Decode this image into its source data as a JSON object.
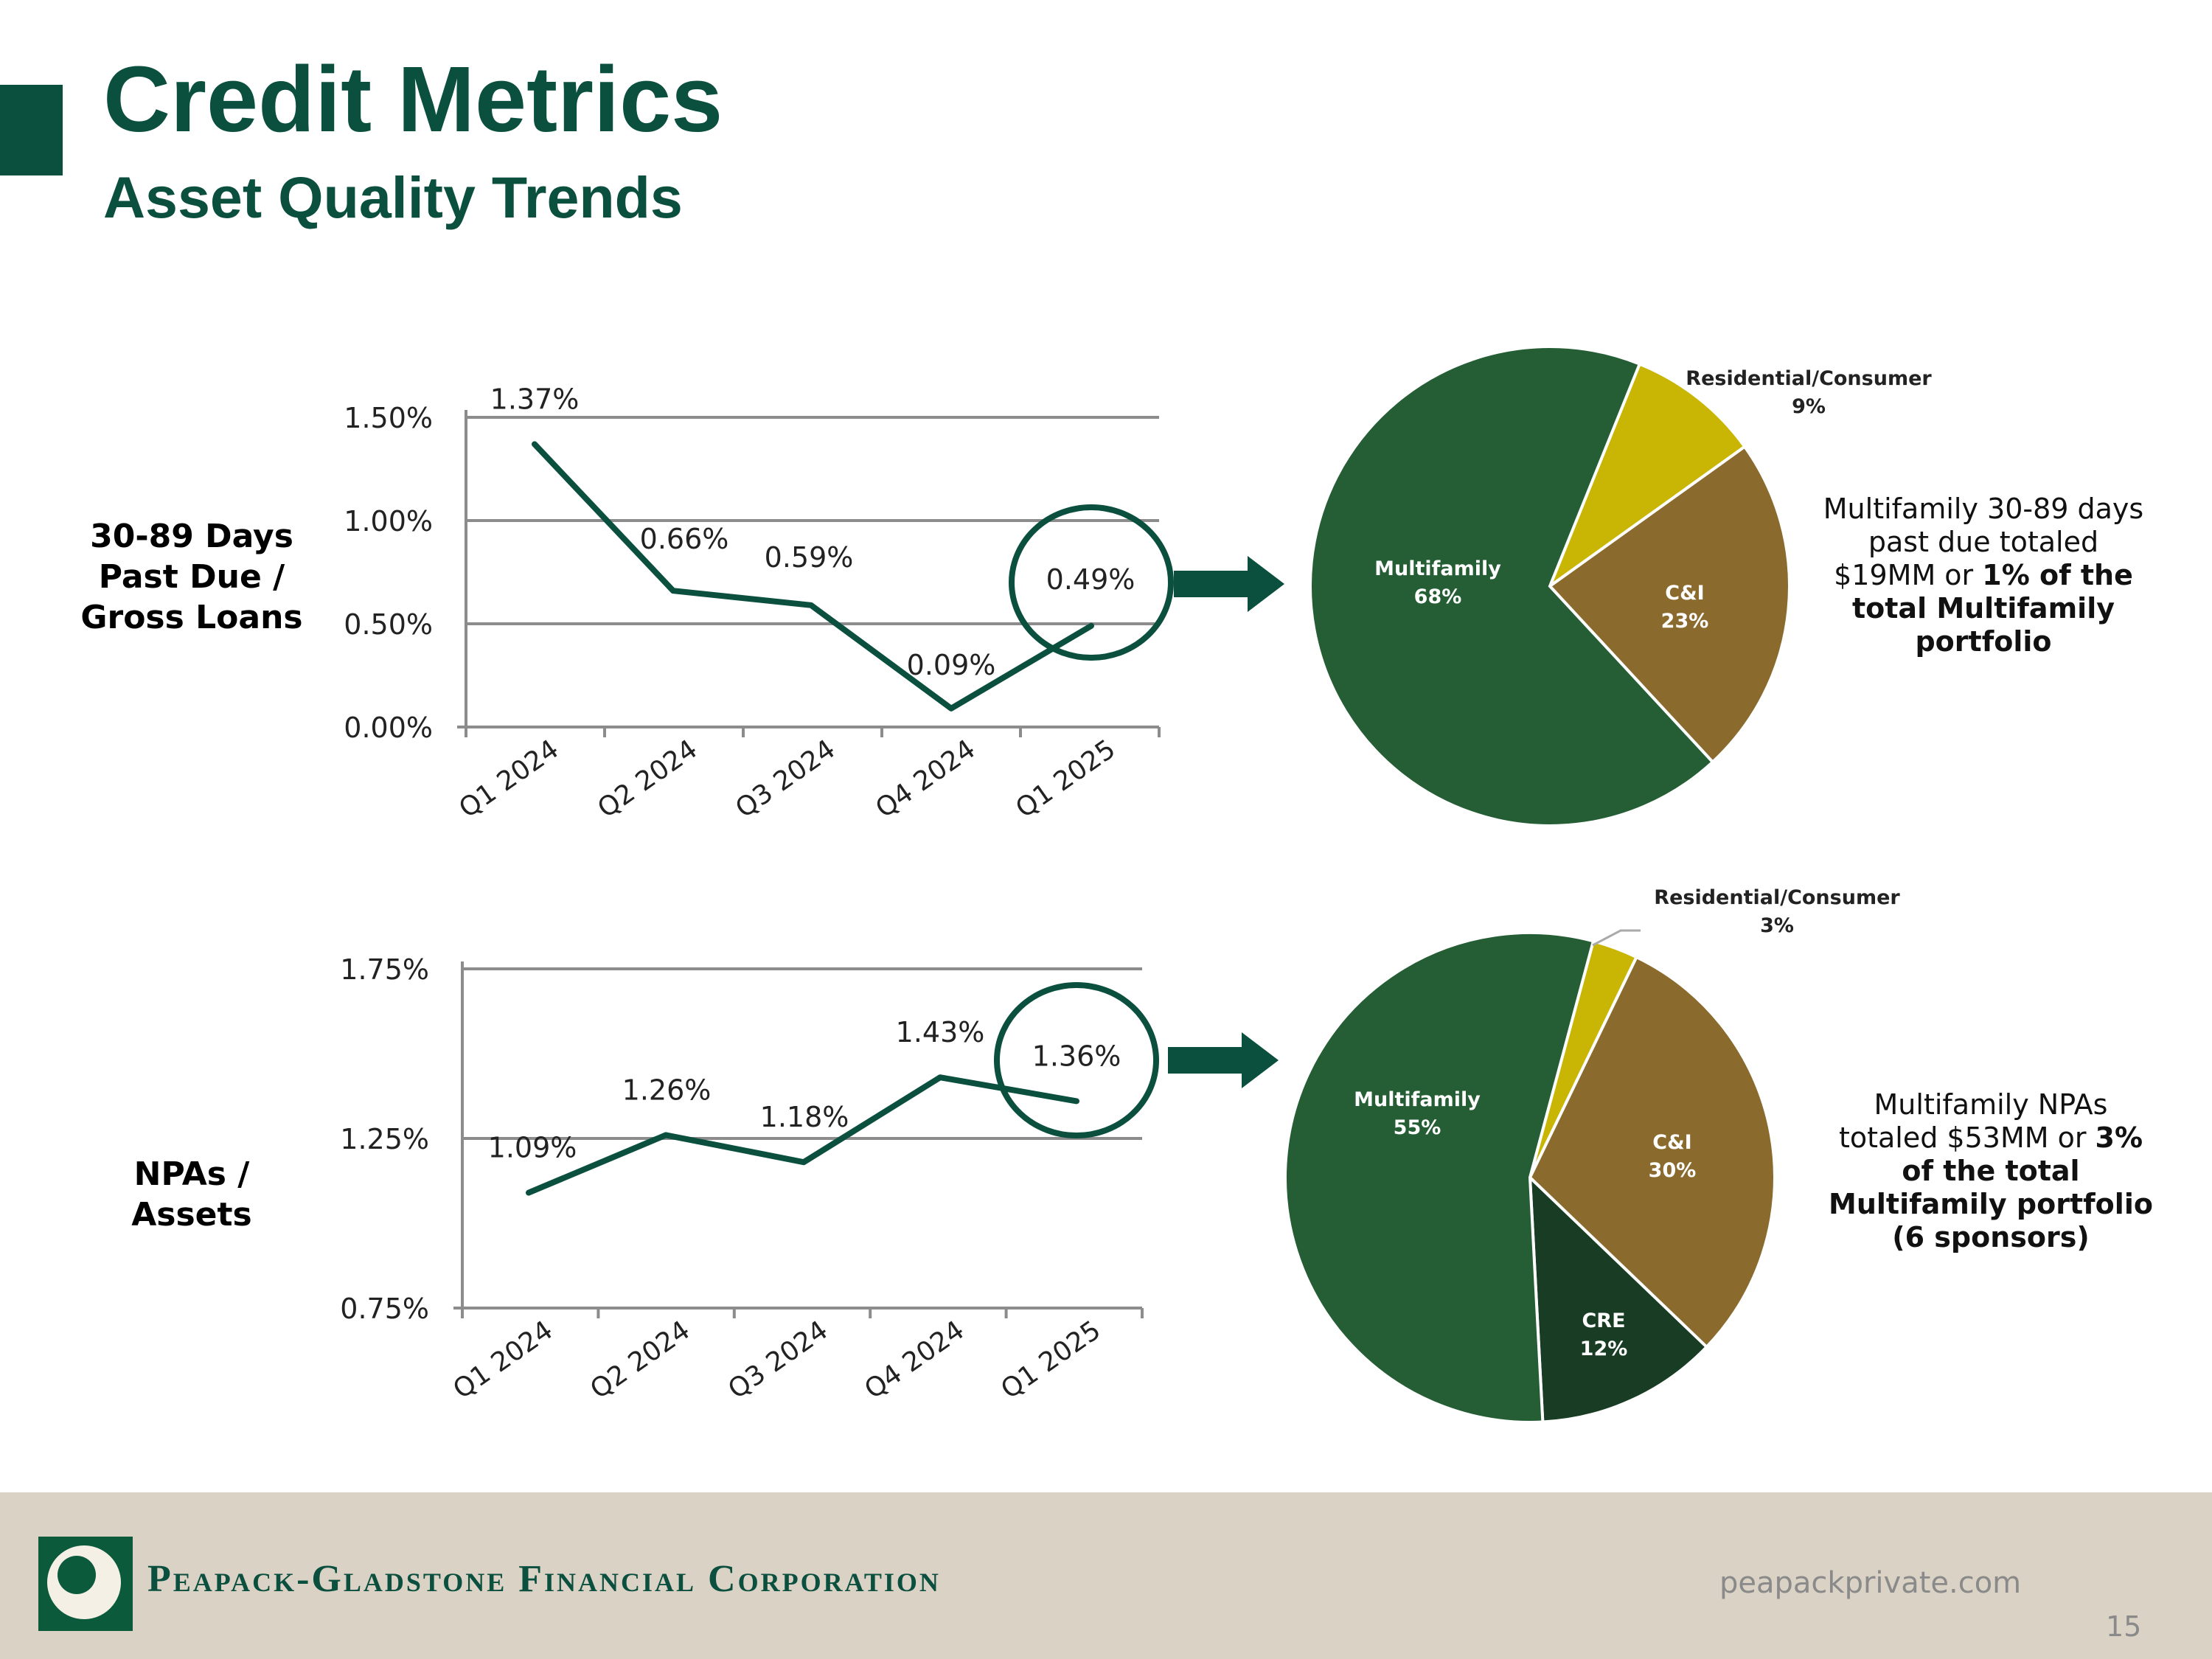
{
  "header": {
    "title": "Credit Metrics",
    "subtitle": "Asset Quality Trends"
  },
  "rows": {
    "top_label_lines": [
      "30-89 Days",
      "Past Due /",
      "Gross Loans"
    ],
    "bottom_label_lines": [
      "NPAs /",
      "Assets"
    ]
  },
  "callouts": {
    "top": {
      "pre": "Multifamily 30-89 days past due totaled $19MM or ",
      "bold": "1% of the total Multifamily portfolio",
      "post": ""
    },
    "bottom": {
      "pre": "Multifamily NPAs totaled $53MM or ",
      "bold": "3% of the total Multifamily portfolio (6 sponsors)",
      "post": ""
    }
  },
  "footer": {
    "company": "Peapack-Gladstone Financial Corporation",
    "website": "peapackprivate.com",
    "page": "15"
  },
  "colors": {
    "brand_green": "#0b4f3f",
    "multifamily": "#255e35",
    "residential": "#c9b604",
    "cni": "#8b6a2e",
    "cre": "#183d24",
    "footer_bg": "#d9d2c5"
  },
  "chart_data": [
    {
      "type": "line",
      "categories": [
        "Q1 2024",
        "Q2 2024",
        "Q3 2024",
        "Q4 2024",
        "Q1 2025"
      ],
      "values": [
        1.37,
        0.66,
        0.59,
        0.09,
        0.49
      ],
      "data_labels": [
        "1.37%",
        "0.66%",
        "0.59%",
        "0.09%",
        "0.49%"
      ],
      "yticks": [
        "0.00%",
        "0.50%",
        "1.00%",
        "1.50%"
      ],
      "ylim": [
        0,
        1.5
      ],
      "grid": true,
      "highlight_category": "Q1 2025"
    },
    {
      "type": "pie",
      "slices": [
        {
          "label": "Multifamily",
          "value": 68,
          "value_label": "68%",
          "color": "#255e35"
        },
        {
          "label": "Residential/Consumer",
          "value": 9,
          "value_label": "9%",
          "color": "#c9b604"
        },
        {
          "label": "C&I",
          "value": 23,
          "value_label": "23%",
          "color": "#8b6a2e"
        }
      ]
    },
    {
      "type": "line",
      "categories": [
        "Q1 2024",
        "Q2 2024",
        "Q3 2024",
        "Q4 2024",
        "Q1 2025"
      ],
      "values": [
        1.09,
        1.26,
        1.18,
        1.43,
        1.36
      ],
      "data_labels": [
        "1.09%",
        "1.26%",
        "1.18%",
        "1.43%",
        "1.36%"
      ],
      "yticks": [
        "0.75%",
        "1.25%",
        "1.75%"
      ],
      "ylim": [
        0.75,
        1.75
      ],
      "grid": true,
      "highlight_category": "Q1 2025"
    },
    {
      "type": "pie",
      "slices": [
        {
          "label": "Multifamily",
          "value": 55,
          "value_label": "55%",
          "color": "#255e35"
        },
        {
          "label": "Residential/Consumer",
          "value": 3,
          "value_label": "3%",
          "color": "#c9b604"
        },
        {
          "label": "C&I",
          "value": 30,
          "value_label": "30%",
          "color": "#8b6a2e"
        },
        {
          "label": "CRE",
          "value": 12,
          "value_label": "12%",
          "color": "#183d24"
        }
      ]
    }
  ]
}
